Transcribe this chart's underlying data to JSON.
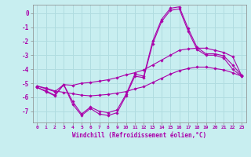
{
  "xlabel": "Windchill (Refroidissement éolien,°C)",
  "background_color": "#c8eef0",
  "grid_color": "#b0dce0",
  "line_color": "#aa00aa",
  "xlim": [
    -0.5,
    23.5
  ],
  "ylim": [
    -7.8,
    0.6
  ],
  "yticks": [
    0,
    -1,
    -2,
    -3,
    -4,
    -5,
    -6,
    -7
  ],
  "xticks": [
    0,
    1,
    2,
    3,
    4,
    5,
    6,
    7,
    8,
    9,
    10,
    11,
    12,
    13,
    14,
    15,
    16,
    17,
    18,
    19,
    20,
    21,
    22,
    23
  ],
  "hours": [
    0,
    1,
    2,
    3,
    4,
    5,
    6,
    7,
    8,
    9,
    10,
    11,
    12,
    13,
    14,
    15,
    16,
    17,
    18,
    19,
    20,
    21,
    22,
    23
  ],
  "line1": [
    -5.3,
    -5.6,
    -5.9,
    -5.1,
    -6.5,
    -7.3,
    -6.8,
    -7.2,
    -7.3,
    -7.1,
    -5.9,
    -4.5,
    -4.6,
    -2.2,
    -0.6,
    0.2,
    0.3,
    -1.3,
    -2.6,
    -3.0,
    -3.0,
    -3.2,
    -4.0,
    -4.5
  ],
  "line2": [
    -5.3,
    -5.55,
    -5.85,
    -5.1,
    -6.3,
    -7.2,
    -6.7,
    -7.0,
    -7.1,
    -6.9,
    -5.8,
    -4.35,
    -4.5,
    -2.0,
    -0.45,
    0.35,
    0.45,
    -1.1,
    -2.45,
    -2.9,
    -2.9,
    -3.05,
    -3.7,
    -4.45
  ],
  "line3": [
    -5.2,
    -5.4,
    -5.6,
    -5.1,
    -5.15,
    -5.0,
    -4.95,
    -4.85,
    -4.75,
    -4.6,
    -4.4,
    -4.25,
    -4.05,
    -3.7,
    -3.35,
    -3.0,
    -2.65,
    -2.55,
    -2.5,
    -2.5,
    -2.65,
    -2.8,
    -3.1,
    -4.45
  ],
  "line4": [
    -5.2,
    -5.35,
    -5.55,
    -5.65,
    -5.75,
    -5.85,
    -5.9,
    -5.85,
    -5.8,
    -5.7,
    -5.6,
    -5.4,
    -5.25,
    -4.95,
    -4.65,
    -4.35,
    -4.1,
    -3.95,
    -3.85,
    -3.85,
    -3.95,
    -4.05,
    -4.25,
    -4.5
  ]
}
